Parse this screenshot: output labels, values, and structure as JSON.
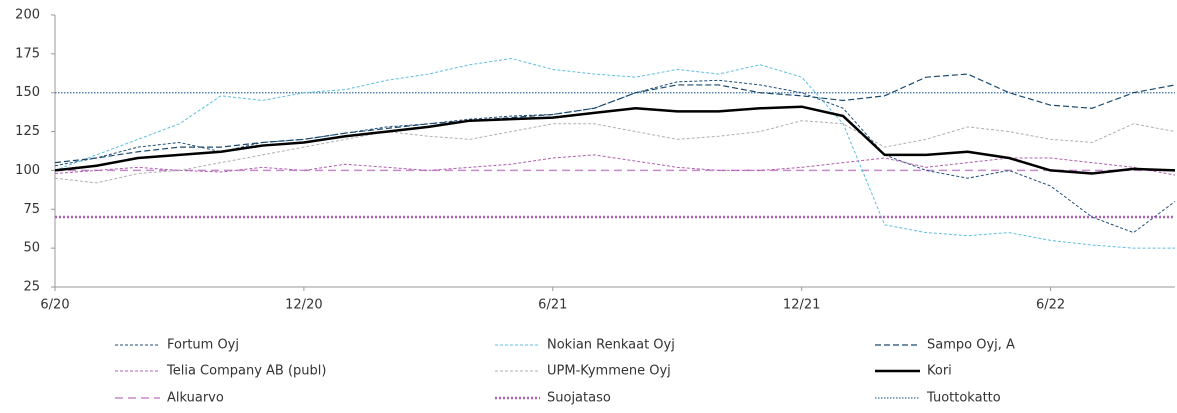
{
  "chart_data": {
    "type": "line",
    "categories": [
      "6/20",
      null,
      null,
      null,
      null,
      null,
      "12/20",
      null,
      null,
      null,
      null,
      null,
      "6/21",
      null,
      null,
      null,
      null,
      null,
      "12/21",
      null,
      null,
      null,
      null,
      null,
      "6/22",
      null,
      null,
      null
    ],
    "ylim": [
      25,
      200
    ],
    "yticks": [
      25,
      50,
      75,
      100,
      125,
      150,
      175,
      200
    ],
    "series": [
      {
        "name": "Fortum Oyj",
        "color": "#1f4e79",
        "dash": "3,2",
        "width": 1,
        "values": [
          103,
          108,
          115,
          118,
          112,
          118,
          120,
          124,
          128,
          130,
          133,
          135,
          136,
          140,
          150,
          157,
          158,
          155,
          150,
          140,
          110,
          100,
          95,
          100,
          90,
          70,
          60,
          80
        ]
      },
      {
        "name": "Nokian Renkaat Oyj",
        "color": "#5bc0de",
        "dash": "3,2",
        "width": 1,
        "values": [
          100,
          110,
          120,
          130,
          148,
          145,
          150,
          152,
          158,
          162,
          168,
          172,
          165,
          162,
          160,
          165,
          162,
          168,
          160,
          130,
          65,
          60,
          58,
          60,
          55,
          52,
          50,
          50
        ]
      },
      {
        "name": "Sampo Oyj, A",
        "color": "#1a4a6e",
        "dash": "6,3",
        "width": 1.2,
        "values": [
          105,
          108,
          112,
          115,
          115,
          118,
          120,
          124,
          127,
          130,
          132,
          134,
          136,
          140,
          150,
          155,
          155,
          150,
          148,
          145,
          148,
          160,
          162,
          150,
          142,
          140,
          150,
          155
        ]
      },
      {
        "name": "Telia Company AB (publ)",
        "color": "#b05fb0",
        "dash": "3,2",
        "width": 1,
        "values": [
          98,
          100,
          102,
          100,
          99,
          102,
          100,
          104,
          102,
          100,
          102,
          104,
          108,
          110,
          106,
          102,
          100,
          100,
          102,
          105,
          108,
          102,
          105,
          108,
          108,
          105,
          102,
          97
        ]
      },
      {
        "name": "UPM-Kymmene Oyj",
        "color": "#b0b0b0",
        "dash": "3,2",
        "width": 1,
        "values": [
          95,
          92,
          98,
          100,
          105,
          110,
          115,
          120,
          125,
          122,
          120,
          125,
          130,
          130,
          125,
          120,
          122,
          125,
          132,
          130,
          115,
          120,
          128,
          125,
          120,
          118,
          130,
          125
        ]
      },
      {
        "name": "Kori",
        "color": "#000000",
        "dash": "none",
        "width": 2.5,
        "values": [
          100,
          103,
          108,
          110,
          112,
          116,
          118,
          122,
          125,
          128,
          132,
          133,
          134,
          137,
          140,
          138,
          138,
          140,
          141,
          135,
          110,
          110,
          112,
          108,
          100,
          98,
          101,
          100
        ]
      }
    ],
    "reference_lines": [
      {
        "name": "Alkuarvo",
        "color": "#c68acb",
        "dash": "8,5",
        "width": 1.5,
        "value": 100
      },
      {
        "name": "Suojataso",
        "color": "#b060b8",
        "dash": "2,2",
        "width": 2.5,
        "value": 70
      },
      {
        "name": "Tuottokatto",
        "color": "#3a6ea5",
        "dash": "1.5,1.5",
        "width": 1.2,
        "value": 150
      }
    ]
  }
}
